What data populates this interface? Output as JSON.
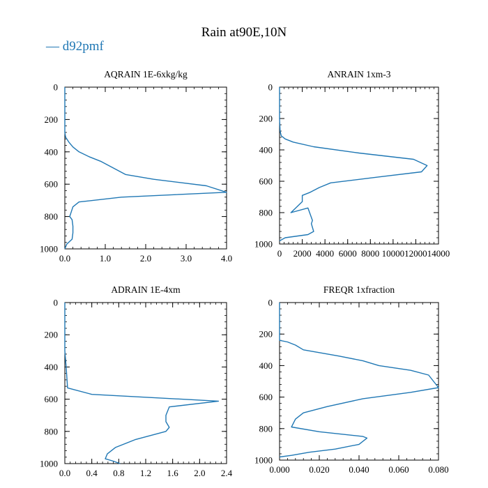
{
  "figure": {
    "title": "Rain at90E,10N",
    "legend_label": "d92pmf",
    "series_color": "#1f77b4"
  },
  "chart_data": [
    {
      "type": "line",
      "title": "AQRAIN  1E-6xkg/kg",
      "xlabel": "",
      "ylabel": "",
      "xlim": [
        0,
        4
      ],
      "ylim": [
        1000,
        0
      ],
      "x_ticks": [
        0,
        1,
        2,
        3,
        4
      ],
      "x_tick_labels": [
        "0.0",
        "1.0",
        "2.0",
        "3.0",
        "4.0"
      ],
      "x_minor_step": 0.2,
      "y_ticks": [
        0,
        200,
        400,
        600,
        800,
        1000
      ],
      "y_tick_labels": [
        "0",
        "200",
        "400",
        "600",
        "800",
        "1000"
      ],
      "y_minor_step": 40,
      "series": [
        {
          "name": "d92pmf",
          "x": [
            0.0,
            0.0,
            0.0,
            0.0,
            0.02,
            0.1,
            0.2,
            0.35,
            0.6,
            0.9,
            1.5,
            2.2,
            3.5,
            4.0,
            1.4,
            0.35,
            0.2,
            0.12,
            0.18,
            0.2,
            0.2,
            0.18,
            0.05,
            0.0
          ],
          "y": [
            0,
            100,
            200,
            280,
            310,
            340,
            370,
            400,
            430,
            460,
            540,
            570,
            610,
            650,
            680,
            710,
            740,
            800,
            820,
            860,
            900,
            940,
            970,
            1000
          ]
        }
      ]
    },
    {
      "type": "line",
      "title": "ANRAIN  1xm-3",
      "xlabel": "",
      "ylabel": "",
      "xlim": [
        0,
        14000
      ],
      "ylim": [
        1000,
        0
      ],
      "x_ticks": [
        0,
        2000,
        4000,
        6000,
        8000,
        10000,
        12000,
        14000
      ],
      "x_tick_labels": [
        "0",
        "2000",
        "4000",
        "6000",
        "8000",
        "10000",
        "12000",
        "14000"
      ],
      "x_minor_step": 400,
      "y_ticks": [
        0,
        200,
        400,
        600,
        800,
        1000
      ],
      "y_tick_labels": [
        "0",
        "200",
        "400",
        "600",
        "800",
        "1000"
      ],
      "y_minor_step": 40,
      "series": [
        {
          "name": "d92pmf",
          "x": [
            0,
            0,
            50,
            150,
            500,
            1200,
            3000,
            7000,
            11800,
            13000,
            12500,
            9000,
            4500,
            3500,
            2700,
            2000,
            2000,
            1000,
            2500,
            2900,
            2800,
            3000,
            2500,
            500,
            0
          ],
          "y": [
            0,
            200,
            280,
            310,
            330,
            350,
            380,
            420,
            460,
            500,
            540,
            570,
            610,
            640,
            670,
            690,
            730,
            800,
            770,
            850,
            870,
            920,
            940,
            960,
            980
          ]
        }
      ]
    },
    {
      "type": "line",
      "title": "ADRAIN  1E-4xm",
      "xlabel": "",
      "ylabel": "",
      "xlim": [
        0,
        2.4
      ],
      "ylim": [
        1000,
        0
      ],
      "x_ticks": [
        0,
        0.4,
        0.8,
        1.2,
        1.6,
        2.0,
        2.4
      ],
      "x_tick_labels": [
        "0.0",
        "0.4",
        "0.8",
        "1.2",
        "1.6",
        "2.0",
        "2.4"
      ],
      "x_minor_step": 0.08,
      "y_ticks": [
        0,
        200,
        400,
        600,
        800,
        1000
      ],
      "y_tick_labels": [
        "0",
        "200",
        "400",
        "600",
        "800",
        "1000"
      ],
      "y_minor_step": 40,
      "series": [
        {
          "name": "d92pmf",
          "x": [
            0.0,
            0.0,
            0.0,
            0.02,
            0.04,
            0.4,
            2.28,
            1.55,
            1.5,
            1.5,
            1.55,
            1.5,
            1.05,
            0.75,
            0.63,
            0.6,
            0.72,
            0.82
          ],
          "y": [
            0,
            200,
            300,
            400,
            530,
            570,
            612,
            648,
            700,
            740,
            775,
            800,
            850,
            900,
            940,
            970,
            985,
            1000
          ]
        }
      ]
    },
    {
      "type": "line",
      "title": "FREQR  1xfraction",
      "xlabel": "",
      "ylabel": "",
      "xlim": [
        0,
        0.08
      ],
      "ylim": [
        1000,
        0
      ],
      "x_ticks": [
        0,
        0.02,
        0.04,
        0.06,
        0.08
      ],
      "x_tick_labels": [
        "0.000",
        "0.020",
        "0.040",
        "0.060",
        "0.080"
      ],
      "x_minor_step": 0.004,
      "y_ticks": [
        0,
        200,
        400,
        600,
        800,
        1000
      ],
      "y_tick_labels": [
        "0",
        "200",
        "400",
        "600",
        "800",
        "1000"
      ],
      "y_minor_step": 40,
      "series": [
        {
          "name": "d92pmf",
          "x": [
            0.0,
            0.0,
            0.0,
            0.004,
            0.008,
            0.012,
            0.03,
            0.042,
            0.05,
            0.066,
            0.075,
            0.08,
            0.066,
            0.042,
            0.024,
            0.012,
            0.008,
            0.006,
            0.02,
            0.042,
            0.044,
            0.04,
            0.028,
            0.015,
            0.006,
            0.0
          ],
          "y": [
            0,
            200,
            240,
            250,
            270,
            300,
            340,
            370,
            400,
            430,
            460,
            540,
            570,
            610,
            660,
            700,
            740,
            790,
            820,
            850,
            860,
            900,
            930,
            950,
            970,
            980
          ]
        }
      ]
    }
  ]
}
